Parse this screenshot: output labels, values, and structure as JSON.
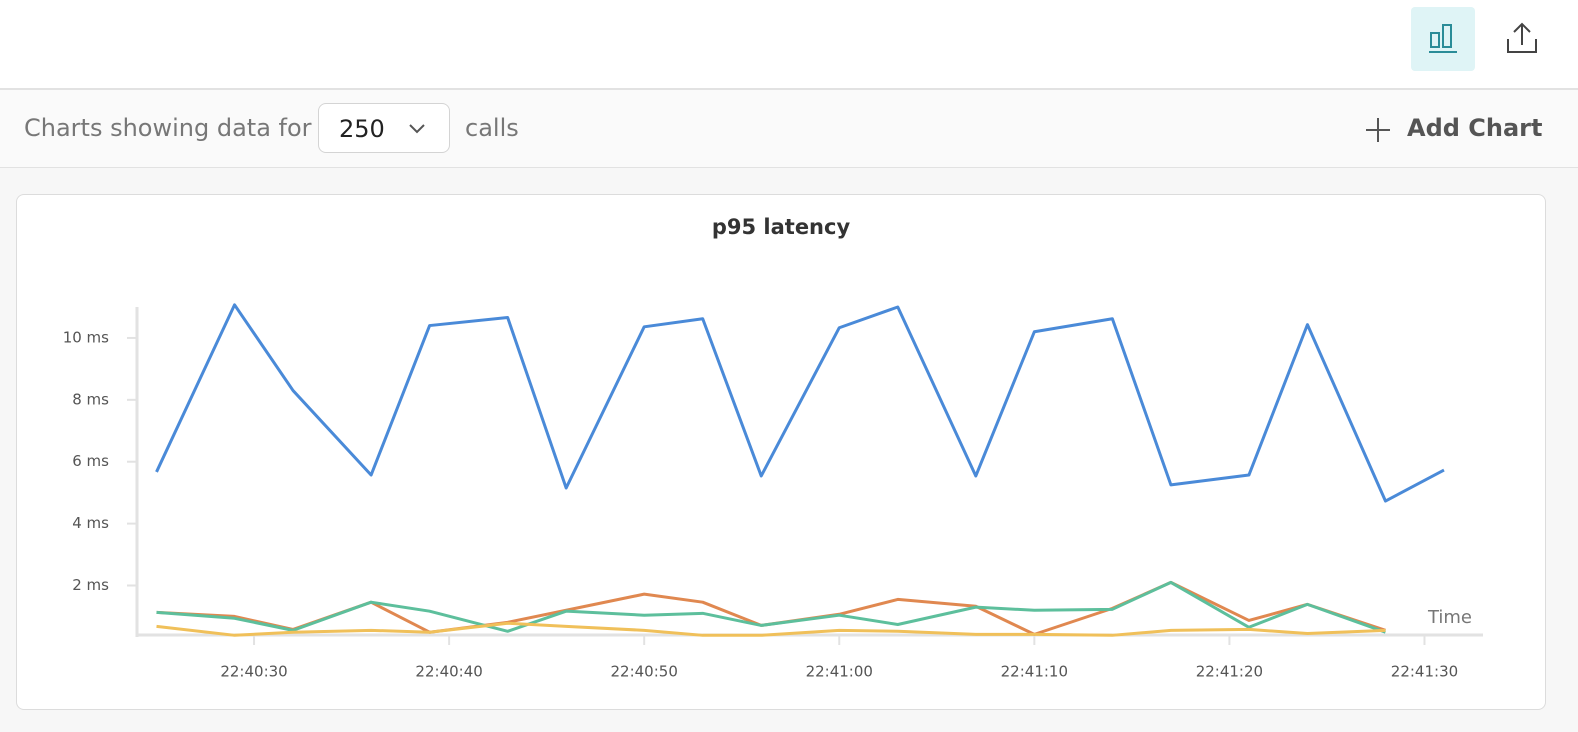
{
  "toolbar": {
    "label": "Charts showing data for",
    "select_value": "250",
    "unit": "calls",
    "add_button": "Add Chart"
  },
  "chart_data": {
    "type": "line",
    "title": "p95 latency",
    "x_label": "Time",
    "x": [
      "22:40:25",
      "22:40:29",
      "22:40:32",
      "22:40:36",
      "22:40:39",
      "22:40:43",
      "22:40:46",
      "22:40:50",
      "22:40:53",
      "22:40:56",
      "22:41:00",
      "22:41:03",
      "22:41:07",
      "22:41:10",
      "22:41:14",
      "22:41:17",
      "22:41:21",
      "22:41:24",
      "22:41:28",
      "22:41:31"
    ],
    "series": [
      {
        "color": "#4a8ad8",
        "values": [
          5.67,
          11.07,
          8.3,
          5.57,
          10.4,
          10.66,
          5.15,
          10.36,
          10.62,
          5.54,
          10.33,
          11.0,
          5.54,
          10.2,
          10.62,
          5.25,
          5.57,
          10.43,
          4.73,
          5.73
        ]
      },
      {
        "color": "#e08850",
        "values": [
          1.13,
          1.0,
          0.58,
          1.46,
          0.49,
          0.81,
          1.2,
          1.72,
          1.46,
          0.71,
          1.07,
          1.55,
          1.33,
          0.42,
          1.26,
          2.1,
          0.87,
          1.39,
          0.55,
          null
        ]
      },
      {
        "color": "#5dbf9c",
        "values": [
          1.13,
          0.94,
          0.55,
          1.46,
          1.17,
          0.52,
          1.17,
          1.04,
          1.1,
          0.71,
          1.04,
          0.74,
          1.3,
          1.2,
          1.23,
          2.1,
          0.65,
          1.39,
          0.49,
          null
        ]
      },
      {
        "color": "#f0c05a",
        "values": [
          0.68,
          0.39,
          0.49,
          0.55,
          0.49,
          0.78,
          0.68,
          0.55,
          0.39,
          0.39,
          0.55,
          0.52,
          0.42,
          0.42,
          0.39,
          0.55,
          0.58,
          0.45,
          0.55,
          null
        ]
      }
    ],
    "xlim": [
      "22:40:24",
      "22:41:33"
    ],
    "xticks": [
      "22:40:30",
      "22:40:40",
      "22:40:50",
      "22:41:00",
      "22:41:10",
      "22:41:20",
      "22:41:30"
    ],
    "ylim": [
      0.4,
      11
    ],
    "yticks": [
      {
        "value": 2,
        "label": "2 ms"
      },
      {
        "value": 4,
        "label": "4 ms"
      },
      {
        "value": 6,
        "label": "6 ms"
      },
      {
        "value": 8,
        "label": "8 ms"
      },
      {
        "value": 10,
        "label": "10 ms"
      }
    ],
    "grid": false
  }
}
